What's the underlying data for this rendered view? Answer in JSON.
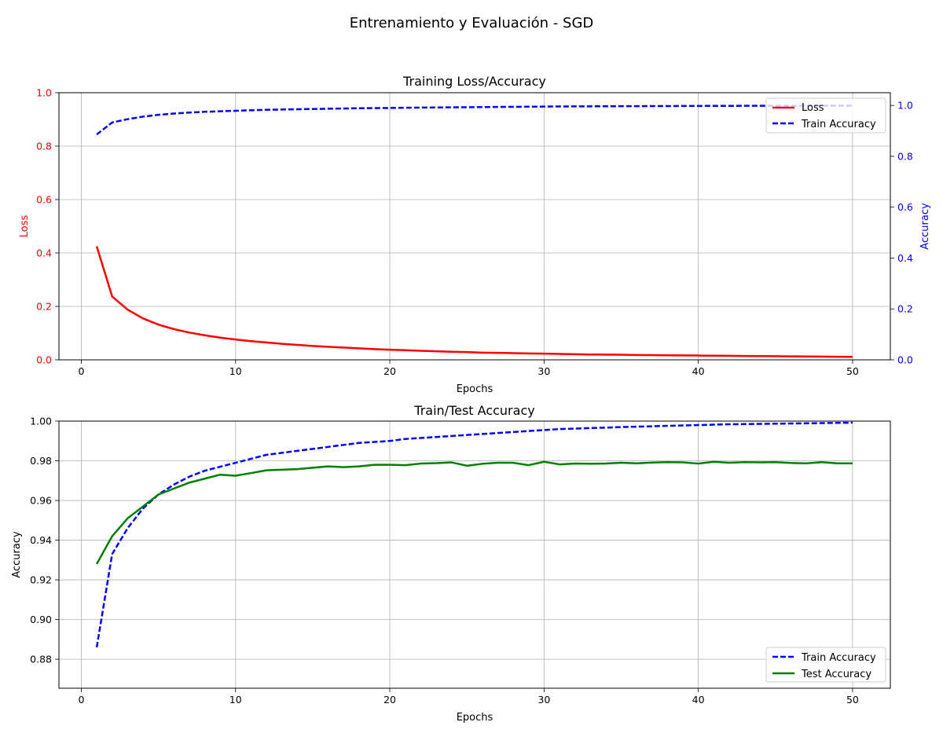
{
  "suptitle": "Entrenamiento y Evaluación - SGD",
  "colors": {
    "loss": "#ff0000",
    "train": "#0000ff",
    "test": "#008000",
    "grid": "#b0b0b0",
    "axis": "#000000"
  },
  "chart_data": [
    {
      "type": "line",
      "title": "Training Loss/Accuracy",
      "xlabel": "Epochs",
      "ylabel": "Loss",
      "ylabel_right": "Accuracy",
      "xlim": [
        -1.45,
        52.45
      ],
      "ylim": [
        0,
        1.0
      ],
      "ylim_right": [
        0,
        1.05
      ],
      "xticks": [
        0,
        10,
        20,
        30,
        40,
        50
      ],
      "yticks": [
        0.0,
        0.2,
        0.4,
        0.6,
        0.8,
        1.0
      ],
      "yticks_right": [
        0.0,
        0.2,
        0.4,
        0.6,
        0.8,
        1.0
      ],
      "grid": true,
      "legend": "top-right",
      "series": [
        {
          "name": "Loss",
          "axis": "left",
          "style": "solid",
          "color": "#ff0000",
          "values": [
            0.425,
            0.237,
            0.188,
            0.155,
            0.132,
            0.115,
            0.102,
            0.092,
            0.083,
            0.076,
            0.07,
            0.065,
            0.06,
            0.056,
            0.052,
            0.049,
            0.046,
            0.043,
            0.04,
            0.038,
            0.036,
            0.034,
            0.032,
            0.03,
            0.029,
            0.027,
            0.026,
            0.025,
            0.024,
            0.023,
            0.022,
            0.021,
            0.02,
            0.0195,
            0.019,
            0.018,
            0.0175,
            0.017,
            0.0165,
            0.016,
            0.0155,
            0.015,
            0.0145,
            0.014,
            0.0135,
            0.013,
            0.0125,
            0.012,
            0.0115,
            0.011
          ]
        },
        {
          "name": "Train Accuracy",
          "axis": "right",
          "style": "dashed",
          "color": "#0000ff",
          "values": [
            0.886,
            0.933,
            0.946,
            0.956,
            0.963,
            0.968,
            0.972,
            0.975,
            0.977,
            0.979,
            0.981,
            0.983,
            0.984,
            0.985,
            0.986,
            0.987,
            0.988,
            0.989,
            0.9895,
            0.99,
            0.991,
            0.9915,
            0.992,
            0.9925,
            0.993,
            0.9935,
            0.994,
            0.9945,
            0.995,
            0.9955,
            0.996,
            0.9962,
            0.9965,
            0.9967,
            0.997,
            0.9972,
            0.9974,
            0.9976,
            0.9978,
            0.998,
            0.9982,
            0.9984,
            0.9985,
            0.9986,
            0.9987,
            0.9988,
            0.9989,
            0.999,
            0.9991,
            0.9992
          ]
        }
      ]
    },
    {
      "type": "line",
      "title": "Train/Test Accuracy",
      "xlabel": "Epochs",
      "ylabel": "Accuracy",
      "xlim": [
        -1.45,
        52.45
      ],
      "ylim": [
        0.8654,
        1.0
      ],
      "xticks": [
        0,
        10,
        20,
        30,
        40,
        50
      ],
      "yticks": [
        0.88,
        0.9,
        0.92,
        0.94,
        0.96,
        0.98,
        1.0
      ],
      "grid": true,
      "legend": "bottom-right",
      "series": [
        {
          "name": "Train Accuracy",
          "style": "dashed",
          "color": "#0000ff",
          "values": [
            0.886,
            0.933,
            0.946,
            0.956,
            0.963,
            0.968,
            0.972,
            0.975,
            0.977,
            0.979,
            0.981,
            0.983,
            0.984,
            0.985,
            0.986,
            0.987,
            0.988,
            0.989,
            0.9895,
            0.99,
            0.991,
            0.9915,
            0.992,
            0.9925,
            0.993,
            0.9935,
            0.994,
            0.9945,
            0.995,
            0.9955,
            0.996,
            0.9962,
            0.9965,
            0.9967,
            0.997,
            0.9972,
            0.9974,
            0.9976,
            0.9978,
            0.998,
            0.9982,
            0.9984,
            0.9985,
            0.9986,
            0.9987,
            0.9988,
            0.9989,
            0.999,
            0.9991,
            0.9992
          ]
        },
        {
          "name": "Test Accuracy",
          "style": "solid",
          "color": "#008000",
          "values": [
            0.928,
            0.942,
            0.951,
            0.957,
            0.963,
            0.966,
            0.969,
            0.971,
            0.973,
            0.9725,
            0.9738,
            0.9752,
            0.9755,
            0.9758,
            0.9765,
            0.9772,
            0.9768,
            0.9772,
            0.978,
            0.978,
            0.9778,
            0.9786,
            0.9788,
            0.9792,
            0.9775,
            0.9785,
            0.979,
            0.979,
            0.9778,
            0.9795,
            0.9782,
            0.9786,
            0.9785,
            0.9786,
            0.979,
            0.9787,
            0.9791,
            0.9793,
            0.9792,
            0.9786,
            0.9795,
            0.979,
            0.9793,
            0.9792,
            0.9793,
            0.9789,
            0.9787,
            0.9793,
            0.9787,
            0.9787
          ]
        }
      ]
    }
  ]
}
